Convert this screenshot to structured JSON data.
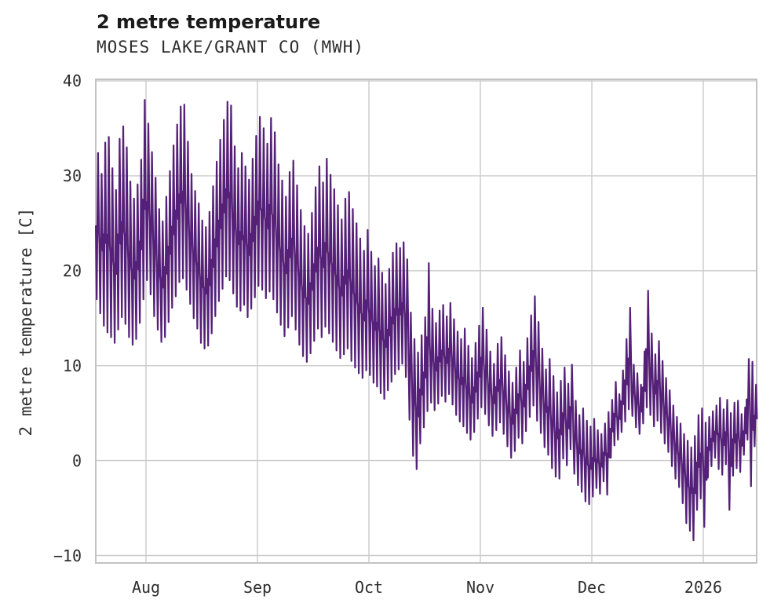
{
  "header": {
    "title": "2 metre temperature",
    "subtitle": "MOSES LAKE/GRANT CO (MWH)"
  },
  "chart_data": {
    "type": "line",
    "title": "2 metre temperature",
    "subtitle": "MOSES LAKE/GRANT CO (MWH)",
    "xlabel": "",
    "ylabel": "2 metre temperature [C]",
    "series_name": "2 metre temperature",
    "line_color": "#552078",
    "grid_color": "#cbcbcb",
    "spine_color": "#c3c3c3",
    "grid": true,
    "legend_position": "none",
    "ylim": [
      -10.8,
      40.2
    ],
    "y_ticks": [
      40,
      30,
      20,
      10,
      0,
      -10
    ],
    "y_tick_labels": [
      "40",
      "30",
      "20",
      "10",
      "0",
      "−10"
    ],
    "x_tick_labels": [
      "Aug",
      "Sep",
      "Oct",
      "Nov",
      "Dec",
      "2026"
    ],
    "x_range_note": "hourly series from mid-July 2025 to mid-January 2026",
    "months": [
      {
        "name": "Jul",
        "first_day": 18,
        "tmin": [
          17.0,
          15.5,
          14.2,
          13.5,
          13.0,
          12.4,
          13.8,
          15.1,
          14.4,
          13.0,
          12.2,
          12.8,
          14.5,
          17.0
        ],
        "tmax": [
          32.4,
          30.2,
          33.5,
          34.1,
          30.8,
          28.5,
          33.9,
          35.2,
          33.0,
          29.4,
          27.6,
          29.1,
          31.7,
          38.0
        ]
      },
      {
        "name": "Aug",
        "first_day": 1,
        "tmin": [
          19.0,
          17.5,
          15.2,
          13.8,
          12.5,
          13.0,
          14.6,
          16.1,
          17.3,
          18.8,
          19.2,
          18.0,
          16.5,
          15.0,
          13.9,
          12.4,
          11.8,
          12.1,
          13.4,
          15.2,
          16.8,
          18.1,
          19.4,
          19.0,
          17.6,
          16.2,
          15.8,
          16.4,
          15.1,
          16.0,
          17.2
        ],
        "tmax": [
          35.5,
          32.5,
          29.8,
          26.5,
          25.2,
          27.8,
          30.5,
          33.2,
          35.4,
          37.3,
          37.5,
          33.6,
          30.2,
          28.4,
          27.1,
          25.3,
          24.6,
          26.2,
          28.9,
          31.5,
          33.8,
          35.9,
          37.8,
          37.4,
          33.1,
          30.8,
          32.4,
          31.0,
          29.6,
          31.8,
          34.2
        ]
      },
      {
        "name": "Sep",
        "first_day": 1,
        "tmin": [
          18.4,
          18.0,
          17.1,
          17.8,
          17.0,
          15.6,
          14.3,
          13.1,
          14.0,
          15.2,
          13.8,
          12.2,
          11.0,
          10.4,
          11.3,
          12.6,
          13.9,
          13.0,
          14.1,
          13.4,
          12.5,
          11.6,
          10.8,
          11.2,
          11.8,
          10.5,
          9.8,
          9.2,
          8.7,
          9.5
        ],
        "tmax": [
          36.2,
          35.0,
          33.4,
          36.1,
          34.6,
          31.2,
          29.5,
          27.8,
          30.4,
          31.6,
          29.0,
          26.4,
          24.7,
          23.9,
          26.1,
          28.8,
          31.0,
          29.3,
          31.8,
          30.1,
          28.6,
          26.9,
          25.4,
          27.6,
          28.3,
          26.5,
          25.0,
          23.4,
          22.1,
          24.3
        ]
      },
      {
        "name": "Oct",
        "first_day": 1,
        "tmin": [
          9.0,
          8.2,
          7.8,
          7.1,
          6.5,
          7.4,
          8.3,
          9.1,
          9.6,
          10.2,
          8.8,
          4.3,
          0.5,
          -0.9,
          1.8,
          3.5,
          5.2,
          6.1,
          5.3,
          6.0,
          6.8,
          6.2,
          7.0,
          5.9,
          4.8,
          4.1,
          3.6,
          2.9,
          2.2,
          3.0,
          4.4
        ],
        "tmax": [
          22.0,
          20.5,
          21.3,
          19.8,
          18.6,
          20.2,
          21.9,
          22.9,
          22.4,
          23.0,
          21.2,
          15.6,
          12.8,
          11.4,
          13.2,
          15.1,
          20.8,
          16.0,
          14.5,
          15.8,
          16.4,
          15.2,
          16.6,
          14.9,
          13.6,
          12.8,
          13.9,
          12.1,
          10.8,
          12.4,
          14.2
        ]
      },
      {
        "name": "Nov",
        "first_day": 1,
        "tmin": [
          5.6,
          4.9,
          3.7,
          2.6,
          3.2,
          4.0,
          2.8,
          1.5,
          0.3,
          1.0,
          2.4,
          1.8,
          3.1,
          4.6,
          5.8,
          4.2,
          2.9,
          1.4,
          0.6,
          -0.8,
          -1.7,
          -1.9,
          0.2,
          -0.5,
          1.2,
          -1.4,
          -2.6,
          -3.3,
          -4.3,
          -4.6
        ],
        "tmax": [
          16.1,
          13.8,
          11.5,
          10.2,
          12.3,
          13.0,
          11.1,
          9.4,
          8.2,
          9.8,
          11.6,
          10.4,
          12.9,
          15.3,
          17.3,
          14.6,
          11.8,
          9.6,
          10.7,
          8.9,
          7.2,
          8.4,
          9.8,
          8.1,
          10.1,
          6.3,
          4.8,
          5.5,
          4.2,
          3.6
        ]
      },
      {
        "name": "Dec",
        "first_day": 1,
        "tmin": [
          -3.8,
          -2.9,
          -3.5,
          -2.2,
          -3.6,
          0.3,
          1.6,
          2.2,
          3.0,
          4.1,
          5.4,
          4.7,
          3.5,
          2.8,
          3.9,
          5.6,
          4.8,
          3.6,
          4.2,
          2.9,
          1.8,
          0.9,
          -0.6,
          -1.9,
          -2.8,
          -4.5,
          -6.6,
          -7.4,
          -8.4,
          -5.2,
          -4.0
        ],
        "tmax": [
          4.4,
          3.2,
          2.8,
          3.9,
          5.1,
          6.4,
          8.3,
          7.0,
          9.5,
          12.8,
          16.1,
          10.1,
          9.2,
          8.0,
          11.5,
          17.9,
          13.4,
          11.2,
          12.6,
          10.5,
          8.7,
          7.4,
          5.8,
          4.6,
          3.9,
          2.8,
          2.1,
          1.4,
          2.6,
          4.8,
          5.5
        ]
      },
      {
        "name": "Jan",
        "first_day": 1,
        "tmin": [
          -7.0,
          -1.8,
          -0.6,
          0.3,
          -0.9,
          -1.5,
          -0.4,
          -5.2,
          -1.6,
          -0.8,
          -1.2,
          0.6,
          2.2,
          -2.7,
          1.5
        ],
        "tmax": [
          4.0,
          4.6,
          5.2,
          5.8,
          6.6,
          5.4,
          6.4,
          5.0,
          6.1,
          6.3,
          4.9,
          5.6,
          10.7,
          10.4,
          8.0
        ]
      }
    ]
  }
}
